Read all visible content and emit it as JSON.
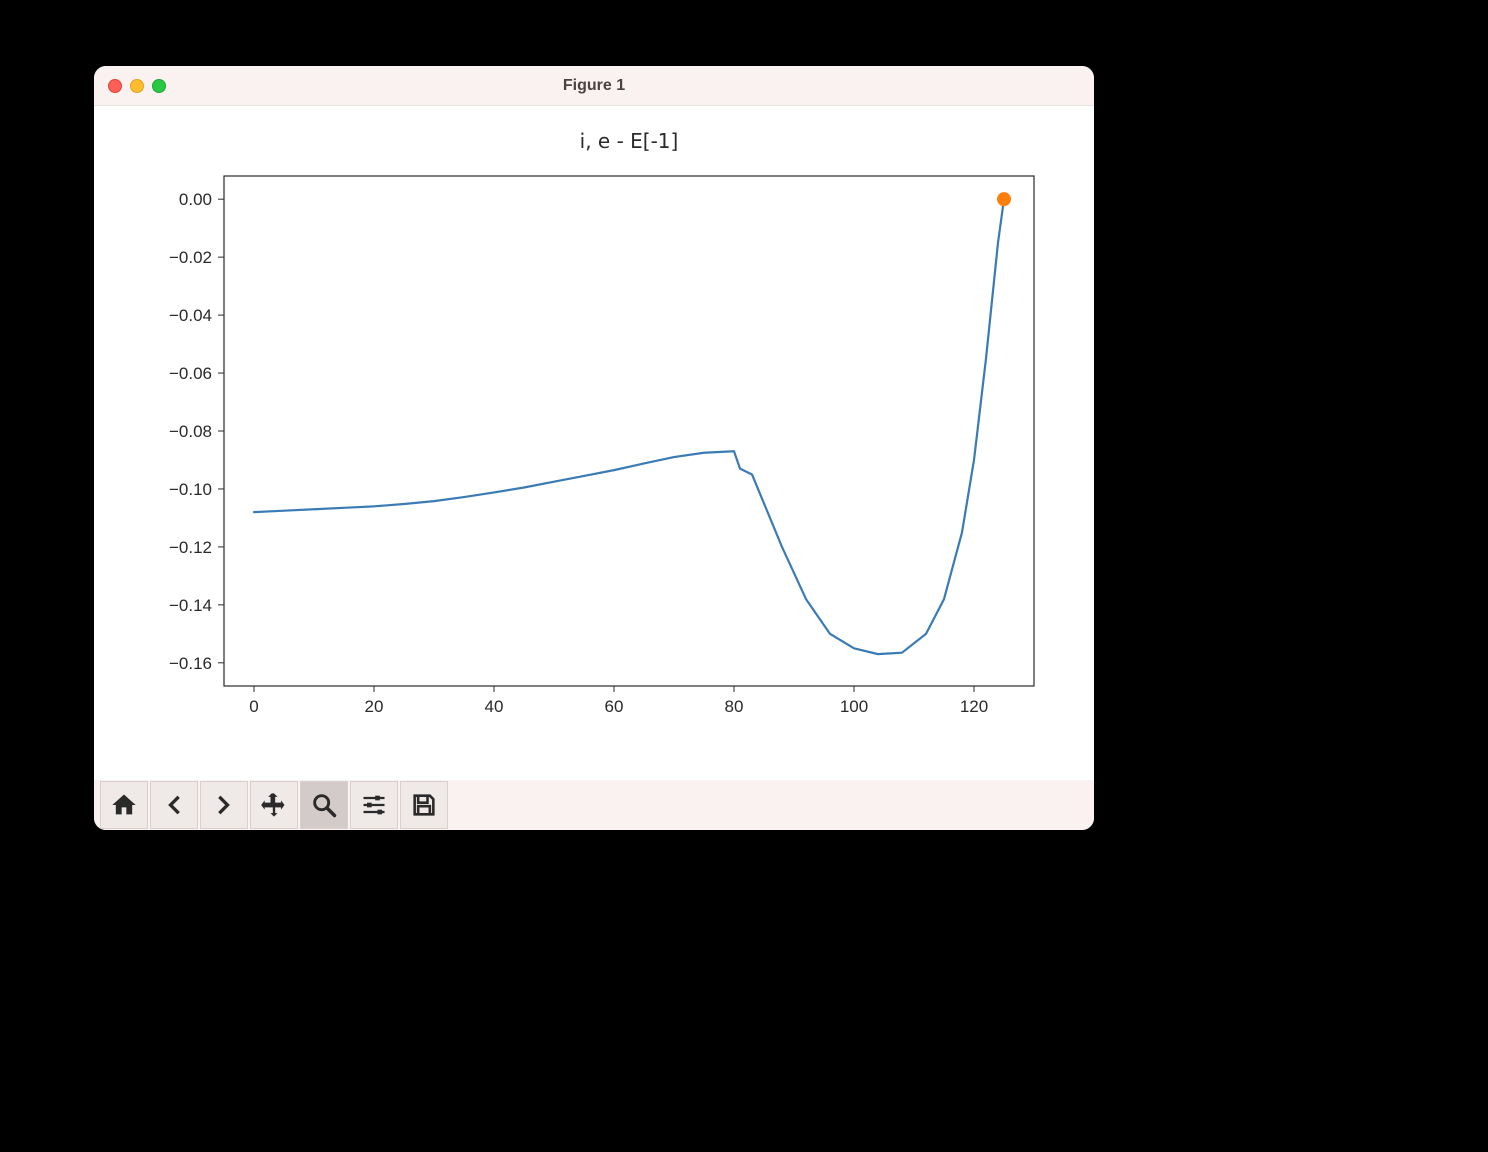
{
  "window": {
    "title": "Figure 1",
    "background": "#000000",
    "chrome_bg": "#faf2f0",
    "content_bg": "#ffffff"
  },
  "chart": {
    "type": "line",
    "title": "i, e - E[-1]",
    "title_fontsize": 20,
    "title_color": "#2a2a2a",
    "background_color": "#ffffff",
    "axis_color": "#2a2a2a",
    "tick_fontsize": 17,
    "tick_color": "#2a2a2a",
    "line_color": "#3b7bb5",
    "line_width": 2.2,
    "marker_color": "#ff7f0e",
    "marker_size": 7,
    "xlim": [
      -5,
      130
    ],
    "ylim": [
      -0.168,
      0.008
    ],
    "xticks": [
      0,
      20,
      40,
      60,
      80,
      100,
      120
    ],
    "yticks": [
      0.0,
      -0.02,
      -0.04,
      -0.06,
      -0.08,
      -0.1,
      -0.12,
      -0.14,
      -0.16
    ],
    "ytick_labels": [
      "0.00",
      "−0.02",
      "−0.04",
      "−0.06",
      "−0.08",
      "−0.10",
      "−0.12",
      "−0.14",
      "−0.16"
    ],
    "grid": false,
    "series": {
      "x": [
        0,
        5,
        10,
        15,
        20,
        25,
        30,
        35,
        40,
        45,
        50,
        55,
        60,
        65,
        70,
        75,
        80,
        81,
        83,
        85,
        88,
        92,
        96,
        100,
        104,
        108,
        112,
        115,
        118,
        120,
        122,
        123,
        124,
        125
      ],
      "y": [
        -0.108,
        -0.1075,
        -0.107,
        -0.1065,
        -0.106,
        -0.1052,
        -0.1042,
        -0.1028,
        -0.1012,
        -0.0995,
        -0.0975,
        -0.0955,
        -0.0935,
        -0.0912,
        -0.089,
        -0.0875,
        -0.087,
        -0.093,
        -0.095,
        -0.105,
        -0.12,
        -0.138,
        -0.15,
        -0.155,
        -0.157,
        -0.1565,
        -0.15,
        -0.138,
        -0.115,
        -0.09,
        -0.055,
        -0.035,
        -0.015,
        0.0
      ]
    },
    "scatter_point": {
      "x": 125,
      "y": 0.0
    }
  },
  "toolbar": {
    "active_index": 4,
    "buttons": [
      {
        "name": "home",
        "label": "Home"
      },
      {
        "name": "back",
        "label": "Back"
      },
      {
        "name": "forward",
        "label": "Forward"
      },
      {
        "name": "pan",
        "label": "Pan"
      },
      {
        "name": "zoom",
        "label": "Zoom"
      },
      {
        "name": "configure",
        "label": "Configure subplots"
      },
      {
        "name": "save",
        "label": "Save"
      }
    ],
    "btn_bg": "#efe9e7",
    "btn_border": "#d9d0ce",
    "btn_active_bg": "#d2cbc9",
    "icon_color": "#2a2a2a"
  }
}
